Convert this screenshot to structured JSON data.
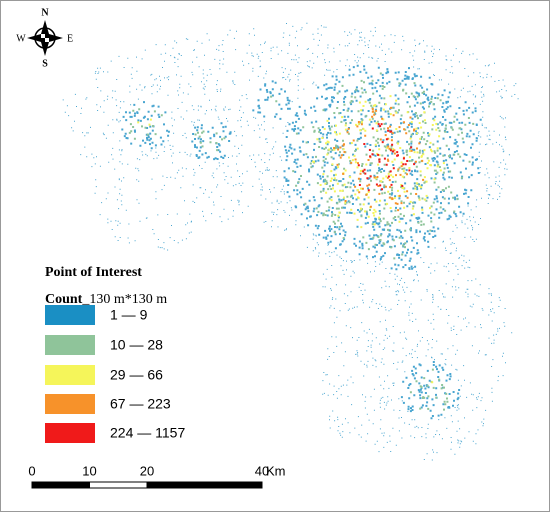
{
  "compass": {
    "north": "N",
    "south": "S",
    "west": "W",
    "east": "E"
  },
  "legend": {
    "title": "Point of Interest",
    "subtitle": "Count",
    "unit": "_130 m*130 m",
    "classes": [
      {
        "label": "1 — 9",
        "color": "#1a8fc4"
      },
      {
        "label": "10 — 28",
        "color": "#8fc49a"
      },
      {
        "label": "29 — 66",
        "color": "#f5f55a"
      },
      {
        "label": "67 — 223",
        "color": "#f7922a"
      },
      {
        "label": "224 — 1157",
        "color": "#f01a1a"
      }
    ]
  },
  "scale_bar": {
    "ticks": [
      0,
      10,
      20,
      40
    ],
    "unit": "Km"
  }
}
